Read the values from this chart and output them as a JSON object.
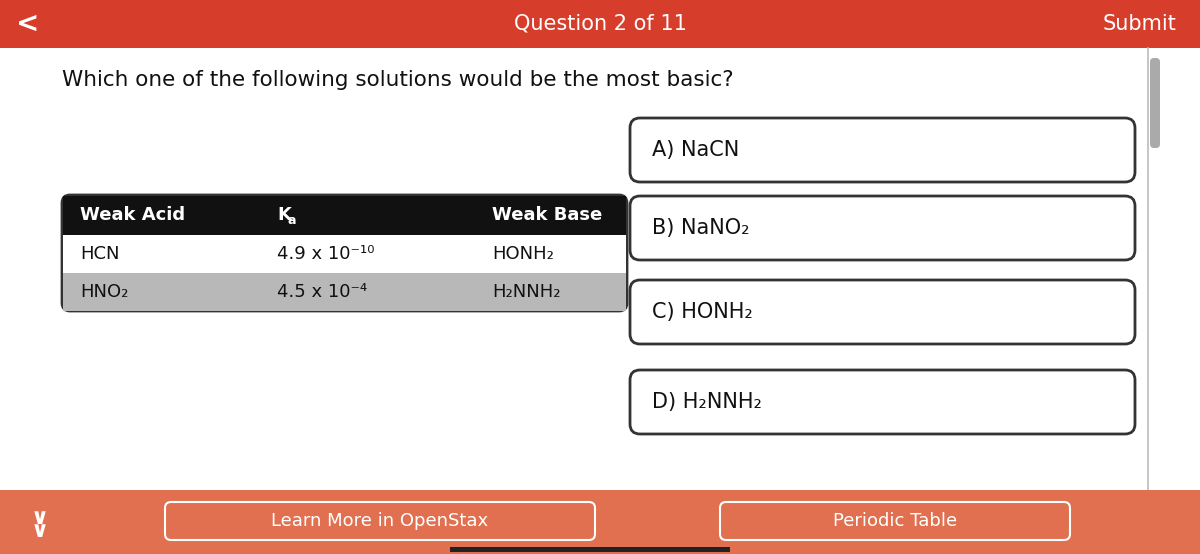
{
  "bg_color": "#ffffff",
  "header_color": "#d63d2b",
  "header_text": "Question 2 of 11",
  "header_submit": "Submit",
  "header_back": "<",
  "question": "Which one of the following solutions would be the most basic?",
  "table_header_bg": "#111111",
  "table_header_fg": "#ffffff",
  "table_col1": "Weak Acid",
  "table_col2_main": "K",
  "table_col2_sub": "a",
  "table_col3": "Weak Base",
  "table_row1": [
    "HCN",
    "4.9 x 10⁻¹⁰",
    "HONH₂"
  ],
  "table_row2": [
    "HNO₂",
    "4.5 x 10⁻⁴",
    "H₂NNH₂"
  ],
  "table_row1_bg": "#ffffff",
  "table_row2_bg": "#b8b8b8",
  "choices": [
    "A) NaCN",
    "B) NaNO₂",
    "C) HONH₂",
    "D) H₂NNH₂"
  ],
  "footer_color": "#e07050",
  "footer_btn1": "Learn More in OpenStax",
  "footer_btn2": "Periodic Table",
  "scrollbar_color": "#aaaaaa",
  "bottom_bar_color": "#222222",
  "divider_color": "#bbbbbb"
}
